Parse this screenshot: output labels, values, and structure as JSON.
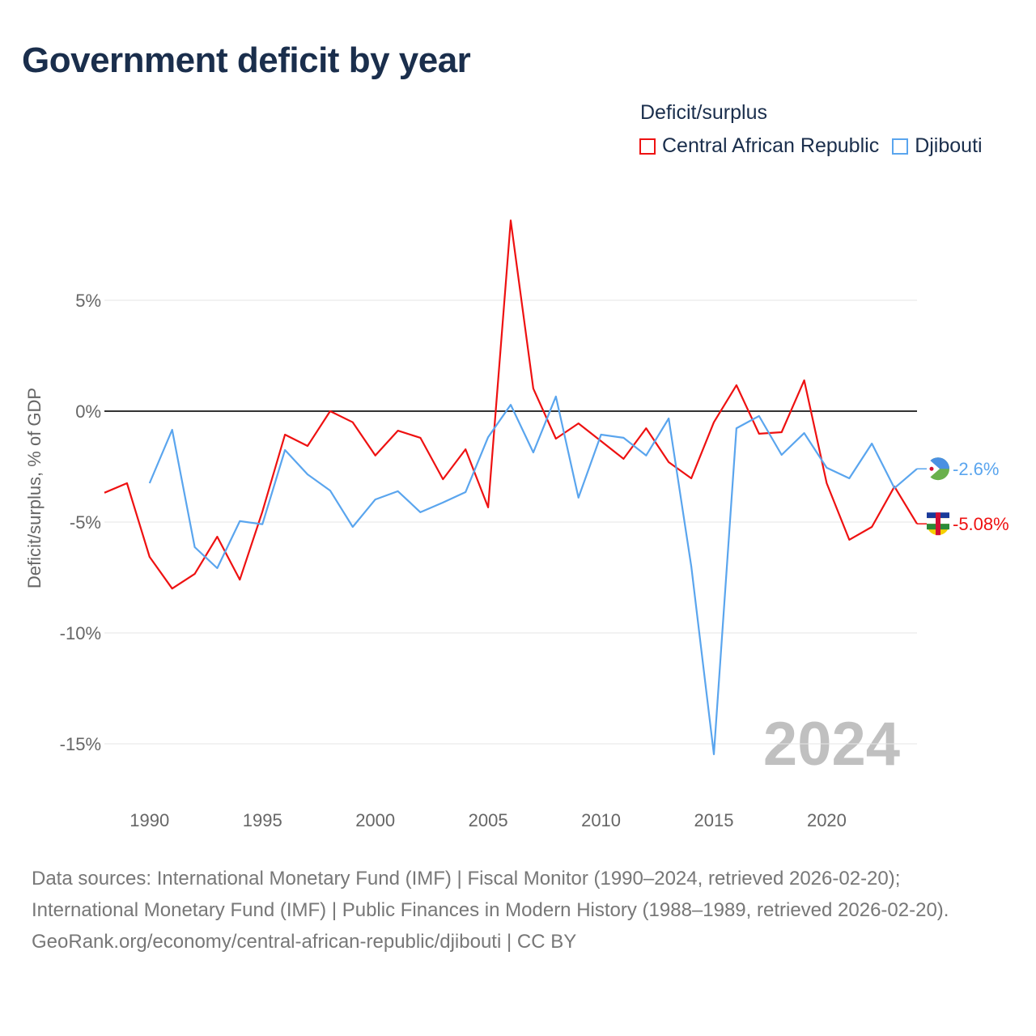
{
  "title": "Government deficit by year",
  "legend_title": "Deficit/surplus",
  "footer": {
    "sources": "Data sources: International Monetary Fund (IMF) | Fiscal Monitor (1990–2024, retrieved 2026-02-20); International Monetary Fund (IMF) | Public Finances in Modern History (1988–1989, retrieved 2026-02-20).",
    "credit": "GeoRank.org/economy/central-african-republic/djibouti | CC BY"
  },
  "chart_data": {
    "type": "line",
    "title": "Government deficit by year",
    "ylabel": "Deficit/surplus, % of GDP",
    "xlabel": "",
    "xlim": [
      1988,
      2024
    ],
    "ylim": [
      -17.5,
      10
    ],
    "xticks": [
      1990,
      1995,
      2000,
      2005,
      2010,
      2015,
      2020
    ],
    "yticks": [
      5,
      0,
      -5,
      -10,
      -15
    ],
    "ytick_labels": [
      "5%",
      "0%",
      "-5%",
      "-10%",
      "-15%"
    ],
    "year_watermark": "2024",
    "legend_placement": "top-right",
    "series": [
      {
        "name": "Central African Republic",
        "color": "#ee1111",
        "end_label": "-5.08%",
        "x": [
          1988,
          1989,
          1990,
          1991,
          1992,
          1993,
          1994,
          1995,
          1996,
          1997,
          1998,
          1999,
          2000,
          2001,
          2002,
          2003,
          2004,
          2005,
          2006,
          2007,
          2008,
          2009,
          2010,
          2011,
          2012,
          2013,
          2014,
          2015,
          2016,
          2017,
          2018,
          2019,
          2020,
          2021,
          2022,
          2023,
          2024
        ],
        "values": [
          -3.68,
          -3.25,
          -6.57,
          -8.0,
          -7.34,
          -5.66,
          -7.6,
          -4.53,
          -1.06,
          -1.57,
          0.0,
          -0.5,
          -2.0,
          -0.88,
          -1.2,
          -3.07,
          -1.72,
          -4.34,
          8.6,
          1.02,
          -1.24,
          -0.55,
          -1.35,
          -2.15,
          -0.77,
          -2.3,
          -3.03,
          -0.5,
          1.17,
          -1.02,
          -0.95,
          1.39,
          -3.25,
          -5.8,
          -5.22,
          -3.4,
          -5.08
        ]
      },
      {
        "name": "Djibouti",
        "color": "#5aa5ee",
        "end_label": "-2.6%",
        "x": [
          1990,
          1991,
          1992,
          1993,
          1994,
          1995,
          1996,
          1997,
          1998,
          1999,
          2000,
          2001,
          2002,
          2003,
          2004,
          2005,
          2006,
          2007,
          2008,
          2009,
          2010,
          2011,
          2012,
          2013,
          2014,
          2015,
          2016,
          2017,
          2018,
          2019,
          2020,
          2021,
          2022,
          2023,
          2024
        ],
        "values": [
          -3.25,
          -0.84,
          -6.13,
          -7.08,
          -4.96,
          -5.1,
          -1.75,
          -2.85,
          -3.58,
          -5.22,
          -3.98,
          -3.61,
          -4.56,
          -4.12,
          -3.65,
          -1.17,
          0.29,
          -1.86,
          0.66,
          -3.9,
          -1.06,
          -1.2,
          -2.0,
          -0.33,
          -7.0,
          -15.47,
          -0.77,
          -0.22,
          -1.97,
          -0.99,
          -2.55,
          -3.03,
          -1.46,
          -3.47,
          -2.6
        ]
      }
    ]
  }
}
